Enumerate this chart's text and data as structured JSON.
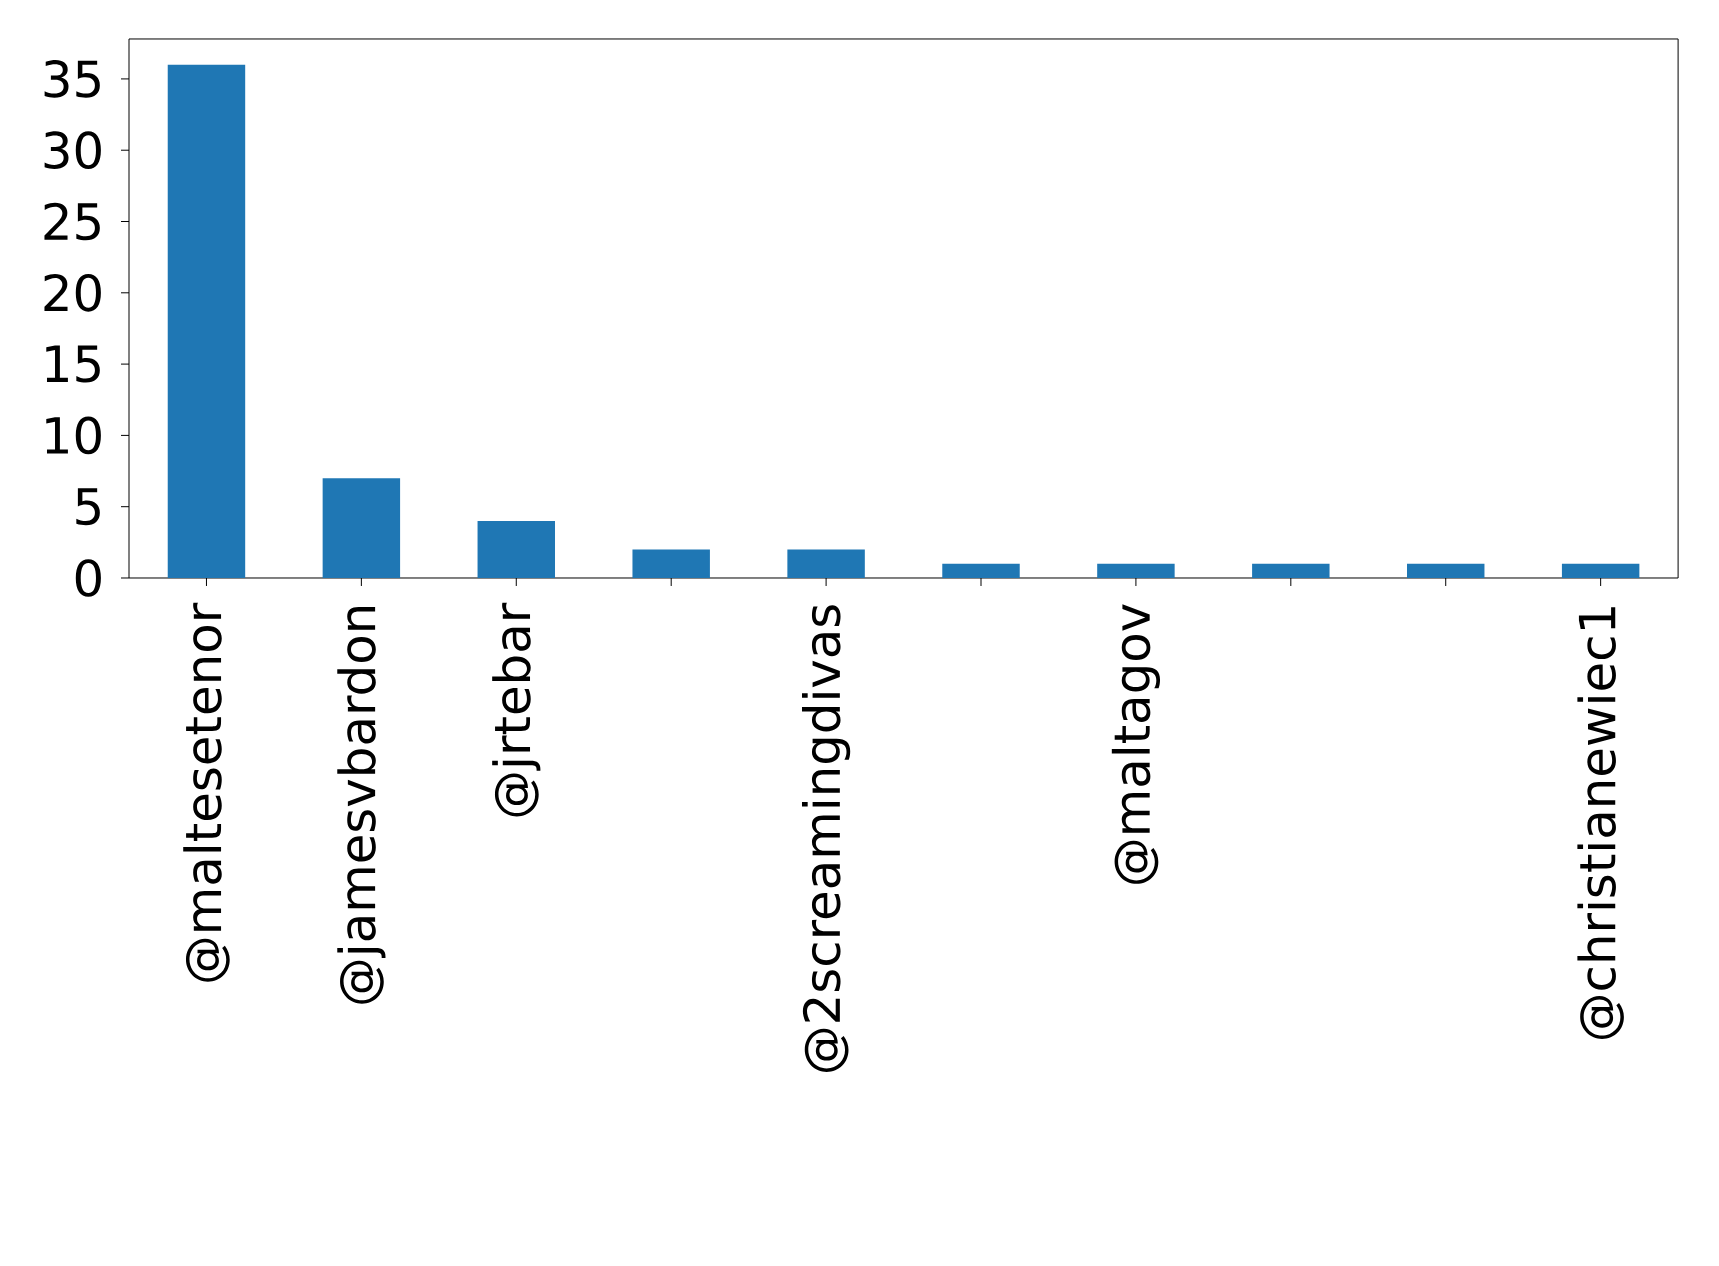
{
  "chart_data": {
    "type": "bar",
    "categories": [
      "@maltesetenor",
      "@jamesvbardon",
      "@jrtebar",
      null,
      "@2screamingdivas",
      null,
      "@maltagov",
      null,
      null,
      "@christianewiec1"
    ],
    "values": [
      36,
      7,
      4,
      2,
      2,
      1,
      1,
      1,
      1,
      1
    ],
    "color": "#1f77b4",
    "ylim": [
      0,
      37.8
    ],
    "yticks": [
      0,
      5,
      10,
      15,
      20,
      25,
      30,
      35
    ]
  }
}
